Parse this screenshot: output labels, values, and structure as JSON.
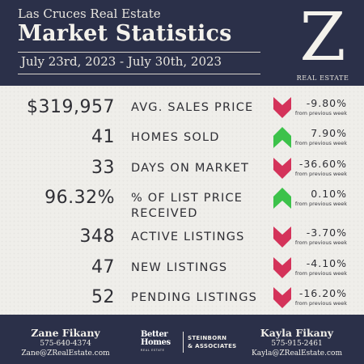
{
  "header": {
    "subtitle": "Las Cruces Real Estate",
    "title": "Market Statistics",
    "date_range": "July 23rd, 2023 - July 30th, 2023"
  },
  "logo": {
    "letter": "Z",
    "caption": "REAL ESTATE"
  },
  "colors": {
    "navy": "#2b3049",
    "panel": "#efeeea",
    "down": "#d4335a",
    "up": "#3cc24a"
  },
  "stats": [
    {
      "value": "$319,957",
      "label": "AVG. SALES PRICE",
      "label_line2": "",
      "direction": "down",
      "change": "-9.80%",
      "note": "from previous week"
    },
    {
      "value": "41",
      "label": "HOMES SOLD",
      "label_line2": "",
      "direction": "up",
      "change": "7.90%",
      "note": "from previous week"
    },
    {
      "value": "33",
      "label": "DAYS ON MARKET",
      "label_line2": "",
      "direction": "down",
      "change": "-36.60%",
      "note": "from previous week"
    },
    {
      "value": "96.32%",
      "label": "% OF LIST PRICE",
      "label_line2": "RECEIVED",
      "direction": "up",
      "change": "0.10%",
      "note": "from previous week"
    },
    {
      "value": "348",
      "label": "ACTIVE LISTINGS",
      "label_line2": "",
      "direction": "down",
      "change": "-3.70%",
      "note": "from previous week"
    },
    {
      "value": "47",
      "label": "NEW LISTINGS",
      "label_line2": "",
      "direction": "down",
      "change": "-4.10%",
      "note": "from previous week"
    },
    {
      "value": "52",
      "label": "PENDING LISTINGS",
      "label_line2": "",
      "direction": "down",
      "change": "-16.20%",
      "note": "from previous week"
    }
  ],
  "footer": {
    "agent_left": {
      "name": "Zane Fikany",
      "phone": "575-640-4374",
      "email": "Zane@ZRealEstate.com"
    },
    "agent_right": {
      "name": "Kayla Fikany",
      "phone": "575-915-2461",
      "email": "Kayla@ZRealEstate.com"
    },
    "brokerage": {
      "brand_line1": "Better",
      "brand_line2": "Homes",
      "brand_sub": "REAL ESTATE",
      "partner_line1": "STEINBORN",
      "partner_line2": "& ASSOCIATES"
    }
  }
}
